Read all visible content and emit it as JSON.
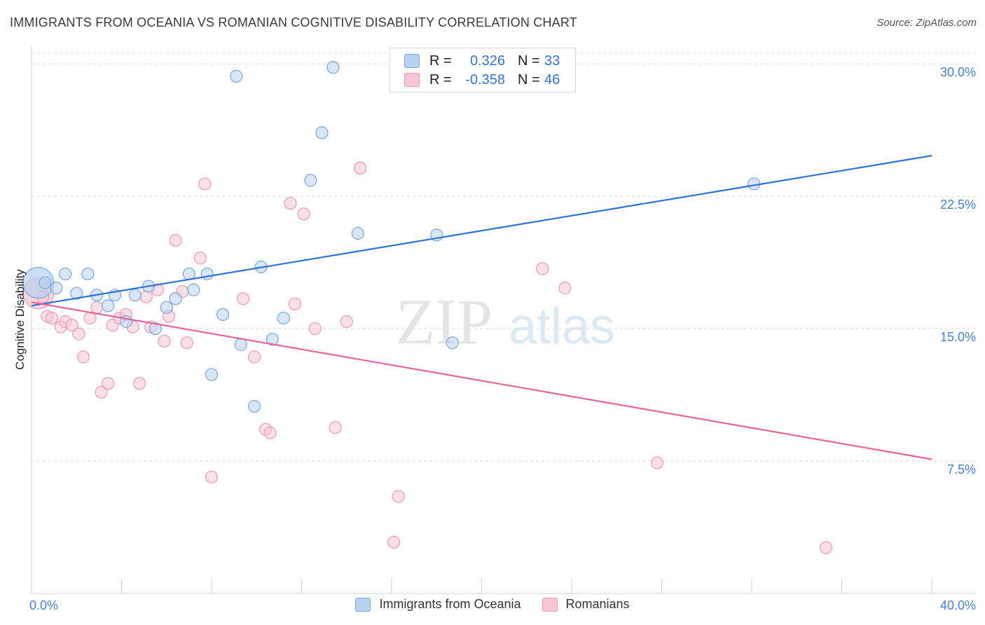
{
  "title": "IMMIGRANTS FROM OCEANIA VS ROMANIAN COGNITIVE DISABILITY CORRELATION CHART",
  "source": "Source: ZipAtlas.com",
  "watermark": {
    "zip": "ZIP",
    "atlas": "atlas"
  },
  "colors": {
    "blue_fill": "#b8d1f0",
    "blue_stroke": "#7aa8dd",
    "blue_line": "#2f72d0",
    "pink_fill": "#f7c7d6",
    "pink_stroke": "#ec9ab5",
    "pink_line": "#e2669a",
    "grid": "#d9d9d9",
    "tick_label": "#4a7fc9"
  },
  "legend": {
    "rows": [
      {
        "r_label": "R =",
        "r_value": "0.326",
        "n_label": "N =",
        "n_value": "33"
      },
      {
        "r_label": "R =",
        "r_value": "-0.358",
        "n_label": "N =",
        "n_value": "46"
      }
    ]
  },
  "bottom_legend": [
    "Immigrants from Oceania",
    "Romanians"
  ],
  "chart_data": {
    "type": "scatter",
    "title": "IMMIGRANTS FROM OCEANIA VS ROMANIAN COGNITIVE DISABILITY CORRELATION CHART",
    "xlabel": "",
    "ylabel": "Cognitive Disability",
    "xlim": [
      0,
      40
    ],
    "ylim": [
      0,
      30.6
    ],
    "x_tick_labels": [
      "0.0%",
      "40.0%"
    ],
    "y_ticks": [
      7.5,
      15.0,
      22.5,
      30.0
    ],
    "y_tick_labels": [
      "7.5%",
      "15.0%",
      "22.5%",
      "30.0%"
    ],
    "grid": true,
    "legend_placement": "top-center",
    "series": [
      {
        "name": "Immigrants from Oceania",
        "trend": {
          "x": [
            0,
            40
          ],
          "y": [
            16.3,
            24.8
          ]
        },
        "points": [
          {
            "x": 0.3,
            "y": 17.6,
            "big": true
          },
          {
            "x": 0.6,
            "y": 17.6
          },
          {
            "x": 1.1,
            "y": 17.3
          },
          {
            "x": 1.5,
            "y": 18.1
          },
          {
            "x": 2.0,
            "y": 17.0
          },
          {
            "x": 2.5,
            "y": 18.1
          },
          {
            "x": 2.9,
            "y": 16.9
          },
          {
            "x": 3.4,
            "y": 16.3
          },
          {
            "x": 3.7,
            "y": 16.9
          },
          {
            "x": 4.2,
            "y": 15.4
          },
          {
            "x": 4.6,
            "y": 16.9
          },
          {
            "x": 5.2,
            "y": 17.4
          },
          {
            "x": 5.5,
            "y": 15.0
          },
          {
            "x": 6.0,
            "y": 16.2
          },
          {
            "x": 6.4,
            "y": 16.7
          },
          {
            "x": 7.0,
            "y": 18.1
          },
          {
            "x": 7.2,
            "y": 17.2
          },
          {
            "x": 7.8,
            "y": 18.1
          },
          {
            "x": 8.0,
            "y": 12.4
          },
          {
            "x": 8.5,
            "y": 15.8
          },
          {
            "x": 9.1,
            "y": 29.3
          },
          {
            "x": 9.3,
            "y": 14.1
          },
          {
            "x": 9.9,
            "y": 10.6
          },
          {
            "x": 10.2,
            "y": 18.5
          },
          {
            "x": 10.7,
            "y": 14.4
          },
          {
            "x": 11.2,
            "y": 15.6
          },
          {
            "x": 12.4,
            "y": 23.4
          },
          {
            "x": 12.9,
            "y": 26.1
          },
          {
            "x": 13.4,
            "y": 29.8
          },
          {
            "x": 14.5,
            "y": 20.4
          },
          {
            "x": 18.0,
            "y": 20.3
          },
          {
            "x": 18.7,
            "y": 14.2
          },
          {
            "x": 32.1,
            "y": 23.2
          }
        ]
      },
      {
        "name": "Romanians",
        "trend": {
          "x": [
            0,
            40
          ],
          "y": [
            16.5,
            7.6
          ]
        },
        "points": [
          {
            "x": 0.3,
            "y": 17.0,
            "big": true
          },
          {
            "x": 0.5,
            "y": 16.8
          },
          {
            "x": 0.7,
            "y": 15.7
          },
          {
            "x": 0.9,
            "y": 15.6
          },
          {
            "x": 1.3,
            "y": 15.1
          },
          {
            "x": 1.5,
            "y": 15.4
          },
          {
            "x": 1.8,
            "y": 15.2
          },
          {
            "x": 2.1,
            "y": 14.7
          },
          {
            "x": 2.3,
            "y": 13.4
          },
          {
            "x": 2.6,
            "y": 15.6
          },
          {
            "x": 2.9,
            "y": 16.2
          },
          {
            "x": 3.1,
            "y": 11.4
          },
          {
            "x": 3.4,
            "y": 11.9
          },
          {
            "x": 3.6,
            "y": 15.2
          },
          {
            "x": 3.9,
            "y": 15.6
          },
          {
            "x": 4.2,
            "y": 15.8
          },
          {
            "x": 4.5,
            "y": 15.1
          },
          {
            "x": 4.8,
            "y": 11.9
          },
          {
            "x": 5.1,
            "y": 16.8
          },
          {
            "x": 5.3,
            "y": 15.1
          },
          {
            "x": 5.6,
            "y": 17.2
          },
          {
            "x": 5.9,
            "y": 14.3
          },
          {
            "x": 6.1,
            "y": 15.7
          },
          {
            "x": 6.4,
            "y": 20.0
          },
          {
            "x": 6.7,
            "y": 17.1
          },
          {
            "x": 6.9,
            "y": 14.2
          },
          {
            "x": 7.5,
            "y": 19.0
          },
          {
            "x": 7.7,
            "y": 23.2
          },
          {
            "x": 8.0,
            "y": 6.6
          },
          {
            "x": 9.4,
            "y": 16.7
          },
          {
            "x": 9.9,
            "y": 13.4
          },
          {
            "x": 10.4,
            "y": 9.3
          },
          {
            "x": 10.6,
            "y": 9.1
          },
          {
            "x": 11.5,
            "y": 22.1
          },
          {
            "x": 11.7,
            "y": 16.4
          },
          {
            "x": 12.1,
            "y": 21.5
          },
          {
            "x": 12.6,
            "y": 15.0
          },
          {
            "x": 13.5,
            "y": 9.4
          },
          {
            "x": 14.0,
            "y": 15.4
          },
          {
            "x": 14.6,
            "y": 24.1
          },
          {
            "x": 16.1,
            "y": 2.9
          },
          {
            "x": 16.3,
            "y": 5.5
          },
          {
            "x": 22.7,
            "y": 18.4
          },
          {
            "x": 23.7,
            "y": 17.3
          },
          {
            "x": 27.8,
            "y": 7.4
          },
          {
            "x": 35.3,
            "y": 2.6
          }
        ]
      }
    ]
  }
}
